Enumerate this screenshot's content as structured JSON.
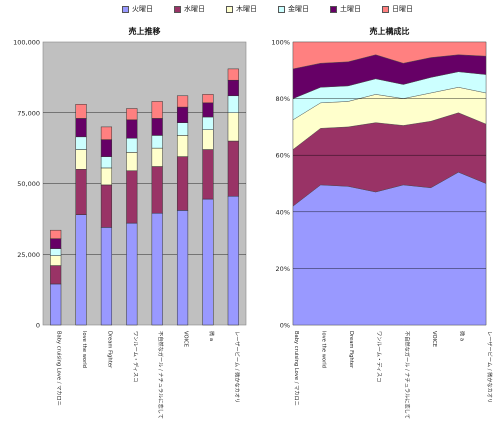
{
  "legend": [
    {
      "name": "火曜日",
      "color": "#9999ff"
    },
    {
      "name": "水曜日",
      "color": "#993366"
    },
    {
      "name": "木曜日",
      "color": "#ffffcc"
    },
    {
      "name": "金曜日",
      "color": "#ccffff"
    },
    {
      "name": "土曜日",
      "color": "#660066"
    },
    {
      "name": "日曜日",
      "color": "#ff8080"
    }
  ],
  "chart_data": [
    {
      "type": "bar",
      "stacked": true,
      "title": "売上推移",
      "background": "#c0c0c0",
      "categories": [
        "Baby cruising Love / マカロニ",
        "love the world",
        "Dream Fighter",
        "ワンルーム・ディスコ",
        "不自然なガール / ナチュラルに恋して",
        "VOICE",
        "微 a",
        "レーザービーム / 微かなカオリ"
      ],
      "series": [
        {
          "name": "火曜日",
          "values": [
            14500,
            39000,
            34500,
            36000,
            39500,
            40500,
            44500,
            45500
          ]
        },
        {
          "name": "水曜日",
          "values": [
            6500,
            16000,
            15000,
            18500,
            16500,
            19000,
            17500,
            19500
          ]
        },
        {
          "name": "木曜日",
          "values": [
            3500,
            7000,
            6000,
            6500,
            6500,
            7500,
            7000,
            10000
          ]
        },
        {
          "name": "金曜日",
          "values": [
            2500,
            4500,
            4000,
            5000,
            4500,
            4500,
            4500,
            6000
          ]
        },
        {
          "name": "土曜日",
          "values": [
            3500,
            6500,
            6000,
            6500,
            6000,
            5500,
            5000,
            5500
          ]
        },
        {
          "name": "日曜日",
          "values": [
            3000,
            5000,
            4500,
            4000,
            6000,
            4000,
            3000,
            4000
          ]
        }
      ],
      "ylim": [
        0,
        100000
      ],
      "yticks": [
        "0",
        "25,000",
        "50,000",
        "75,000",
        "100,000"
      ],
      "grid": true
    },
    {
      "type": "area",
      "stacked": "percent",
      "title": "売上構成比",
      "background": "#ffffff",
      "categories": [
        "Baby cruising Love / マカロニ",
        "love the world",
        "Dream Fighter",
        "ワンルーム・ディスコ",
        "不自然なガール / ナチュラルに恋して",
        "VOICE",
        "微 a",
        "レーザービーム / 微かなカオリ"
      ],
      "series": [
        {
          "name": "火曜日",
          "values": [
            42,
            49.5,
            49,
            47,
            49.5,
            48.5,
            54,
            50
          ]
        },
        {
          "name": "水曜日",
          "values": [
            20,
            20,
            21,
            24.5,
            21,
            23.5,
            21,
            21
          ]
        },
        {
          "name": "木曜日",
          "values": [
            10.5,
            9,
            9,
            10,
            9.5,
            10,
            9,
            11
          ]
        },
        {
          "name": "金曜日",
          "values": [
            7.5,
            5.5,
            5.5,
            5.5,
            5,
            5.5,
            5.5,
            6.5
          ]
        },
        {
          "name": "土曜日",
          "values": [
            10.5,
            8.5,
            8.5,
            8.5,
            7.5,
            7,
            6,
            6.5
          ]
        },
        {
          "name": "日曜日",
          "values": [
            9.5,
            7.5,
            7,
            4.5,
            7.5,
            5.5,
            4.5,
            5
          ]
        }
      ],
      "ylim": [
        0,
        100
      ],
      "yticks": [
        "0%",
        "20%",
        "40%",
        "60%",
        "80%",
        "100%"
      ],
      "grid": true
    }
  ]
}
